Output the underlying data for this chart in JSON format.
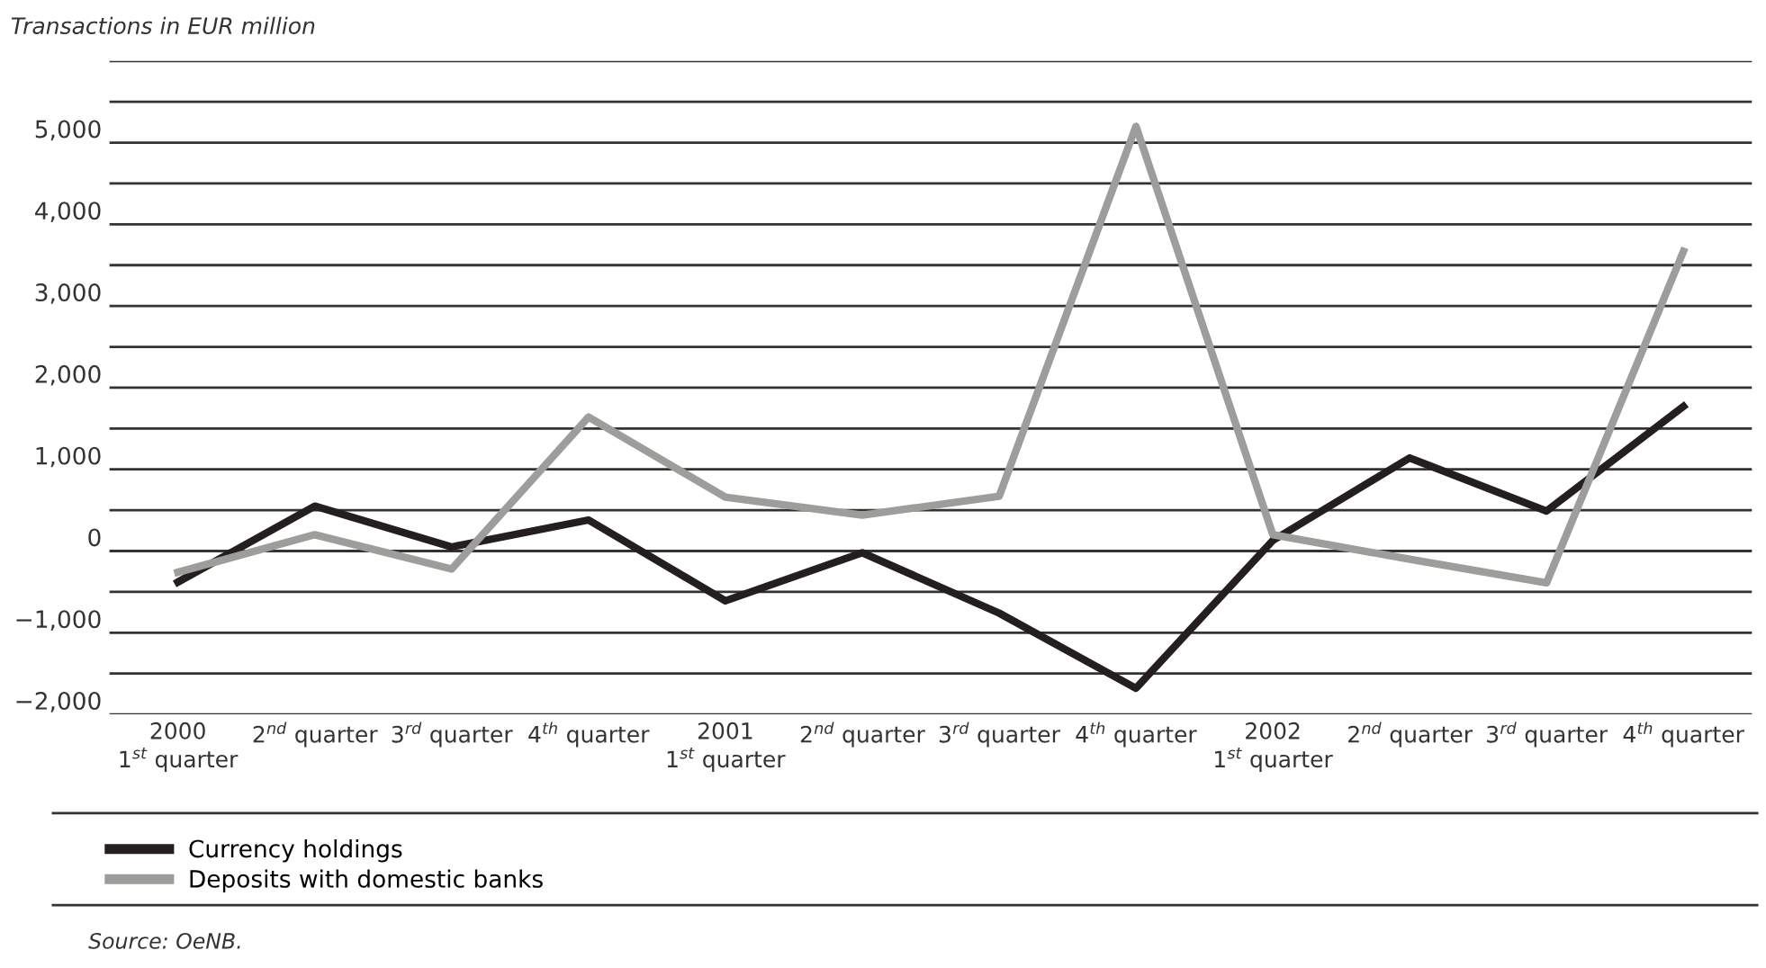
{
  "chart_data": {
    "type": "line",
    "title": "Transactions in EUR million",
    "categories": [
      "2000\n1$^{st}$ quarter",
      "2$^{nd}$ quarter",
      "3$^{rd}$ quarter",
      "4$^{th}$ quarter",
      "2001\n1$^{st}$ quarter",
      "2$^{nd}$ quarter",
      "3$^{rd}$ quarter",
      "4$^{th}$ quarter",
      "2002\n1$^{st}$ quarter",
      "2$^{nd}$ quarter",
      "3$^{rd}$ quarter",
      "4$^{th}$ quarter"
    ],
    "series": [
      {
        "name": "Currency holdings",
        "color": "#231f20",
        "values": [
          -380,
          550,
          50,
          380,
          -610,
          -20,
          -760,
          -1680,
          130,
          1140,
          490,
          1770
        ]
      },
      {
        "name": "Deposits with domestic banks",
        "color": "#9d9d9c",
        "values": [
          -260,
          200,
          -220,
          1640,
          660,
          440,
          670,
          5200,
          200,
          -100,
          -390,
          3670
        ]
      }
    ],
    "ylim": [
      -2000,
      6000
    ],
    "yticks": [
      {
        "value": -2000,
        "label": "−2,000"
      },
      {
        "value": -1500,
        "label": null
      },
      {
        "value": -1000,
        "label": "−1,000"
      },
      {
        "value": -500,
        "label": null
      },
      0,
      {
        "value": 500,
        "label": null
      },
      {
        "value": 1000,
        "label": "1,000"
      },
      {
        "value": 1500,
        "label": null
      },
      {
        "value": 2000,
        "label": "2,000"
      },
      {
        "value": 2500,
        "label": null
      },
      {
        "value": 3000,
        "label": "3,000"
      },
      {
        "value": 3500,
        "label": null
      },
      {
        "value": 4000,
        "label": "4,000"
      },
      {
        "value": 4500,
        "label": null
      },
      {
        "value": 5000,
        "label": "5,000"
      },
      {
        "value": 5500,
        "label": null
      },
      {
        "value": 6000,
        "label": null
      }
    ],
    "grid": "y",
    "legend": "bottom",
    "marker": "none",
    "line_style": "solid",
    "annotations": [
      "Source: OeNB."
    ]
  }
}
